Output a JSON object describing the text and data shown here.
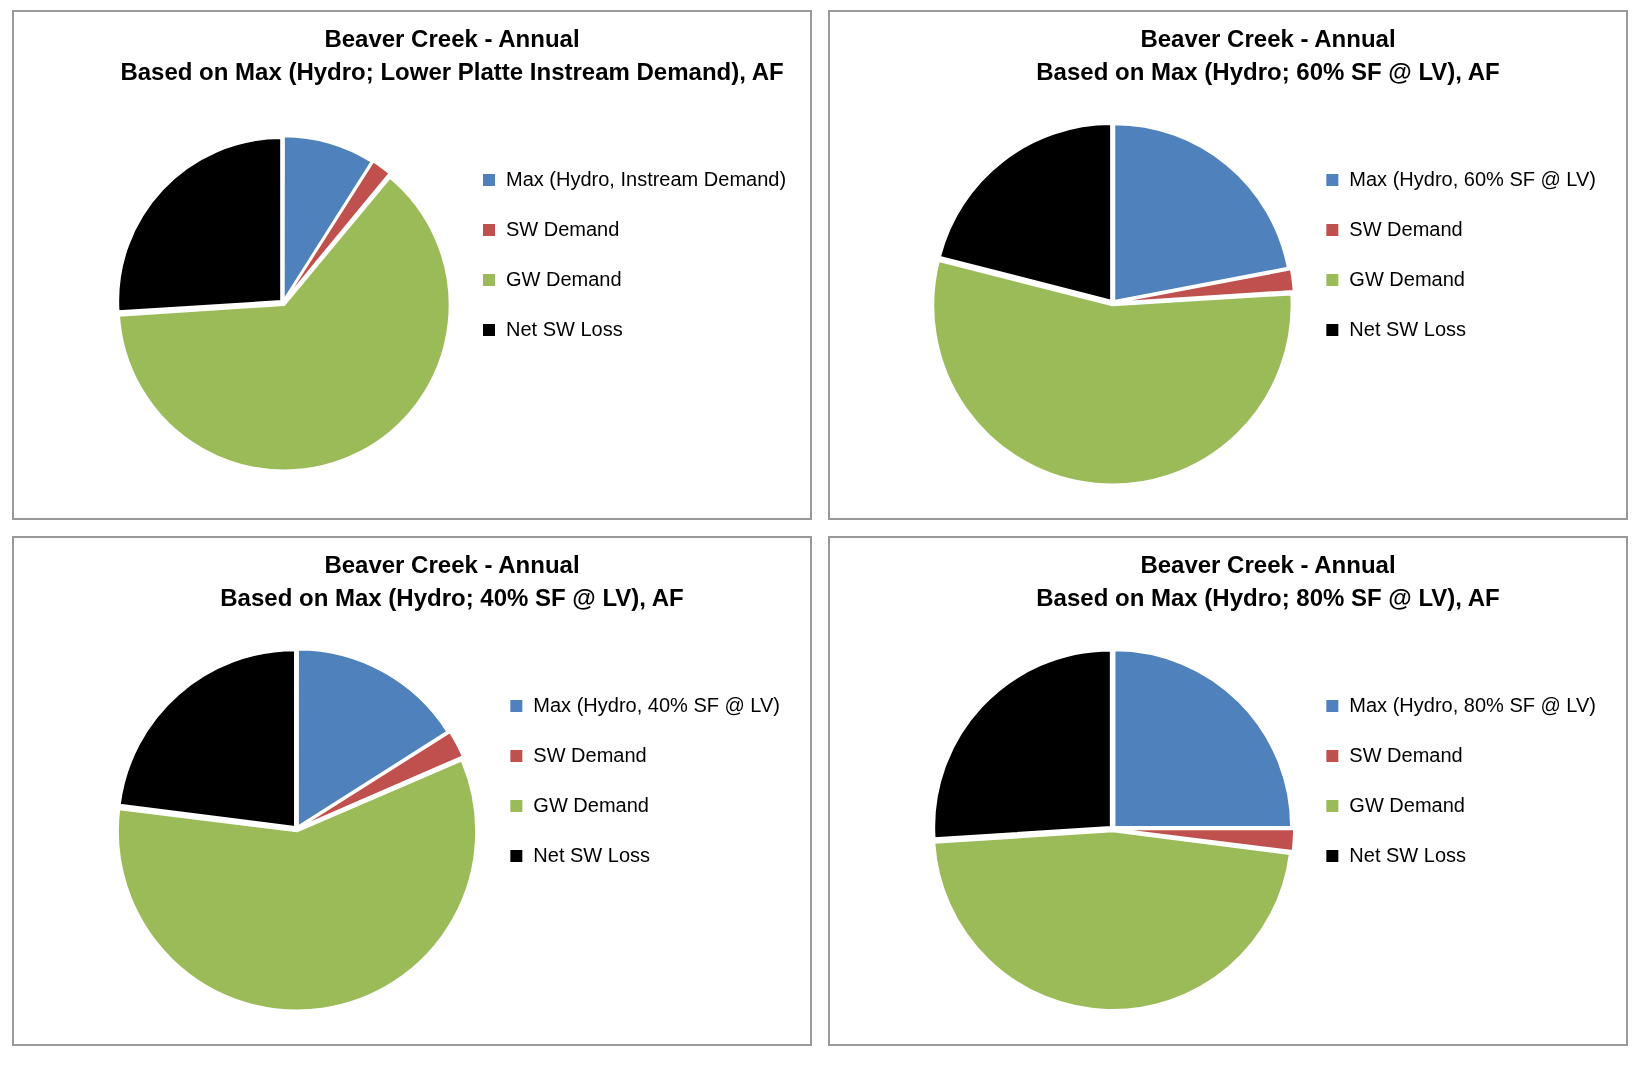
{
  "chart_data": [
    {
      "type": "pie",
      "title": "Beaver Creek - Annual",
      "subtitle": "Based on Max (Hydro; Lower Platte Instream Demand), AF",
      "categories": [
        "Max (Hydro, Instream Demand)",
        "SW Demand",
        "GW Demand",
        "Net SW Loss"
      ],
      "values": [
        9,
        2,
        63,
        26
      ],
      "colors": [
        "#4f81bd",
        "#c0504d",
        "#9bbb59",
        "#000000"
      ],
      "legend": "right"
    },
    {
      "type": "pie",
      "title": "Beaver Creek - Annual",
      "subtitle": "Based on Max (Hydro; 60% SF @ LV), AF",
      "categories": [
        "Max (Hydro, 60% SF @ LV)",
        "SW Demand",
        "GW Demand",
        "Net SW Loss"
      ],
      "values": [
        22,
        2,
        55,
        21
      ],
      "colors": [
        "#4f81bd",
        "#c0504d",
        "#9bbb59",
        "#000000"
      ],
      "legend": "right"
    },
    {
      "type": "pie",
      "title": "Beaver Creek - Annual",
      "subtitle": "Based on Max (Hydro; 40% SF @ LV), AF",
      "categories": [
        "Max (Hydro, 40% SF @ LV)",
        "SW Demand",
        "GW Demand",
        "Net SW Loss"
      ],
      "values": [
        16,
        2.5,
        58.5,
        23
      ],
      "colors": [
        "#4f81bd",
        "#c0504d",
        "#9bbb59",
        "#000000"
      ],
      "legend": "right"
    },
    {
      "type": "pie",
      "title": "Beaver Creek - Annual",
      "subtitle": "Based on Max (Hydro; 80% SF @ LV), AF",
      "categories": [
        "Max (Hydro, 80% SF @ LV)",
        "SW Demand",
        "GW Demand",
        "Net SW Loss"
      ],
      "values": [
        25,
        2,
        47,
        26
      ],
      "colors": [
        "#4f81bd",
        "#c0504d",
        "#9bbb59",
        "#000000"
      ],
      "legend": "right"
    }
  ]
}
